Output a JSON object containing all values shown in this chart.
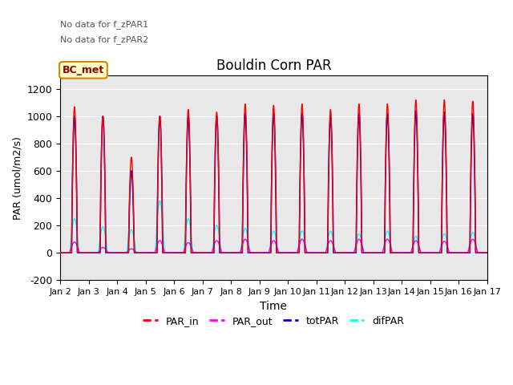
{
  "title": "Bouldin Corn PAR",
  "xlabel": "Time",
  "ylabel": "PAR (umol/m2/s)",
  "ylim": [
    -200,
    1300
  ],
  "yticks": [
    -200,
    0,
    200,
    400,
    600,
    800,
    1000,
    1200
  ],
  "n_days": 15,
  "colors": {
    "PAR_in": "#ff0000",
    "PAR_out": "#ff00ff",
    "totPAR": "#0000cc",
    "difPAR": "#00ffff"
  },
  "legend_labels": [
    "PAR_in",
    "PAR_out",
    "totPAR",
    "difPAR"
  ],
  "no_data_text1": "No data for f_zPAR1",
  "no_data_text2": "No data for f_zPAR2",
  "bc_met_label": "BC_met",
  "xtick_labels": [
    "Jan 2",
    "Jan 3",
    "Jan 4",
    "Jan 5",
    "Jan 6",
    "Jan 7",
    "Jan 8",
    "Jan 9",
    "Jan 10",
    "Jan 11",
    "Jan 12",
    "Jan 13",
    "Jan 14",
    "Jan 15",
    "Jan 16",
    "Jan 17"
  ],
  "background_color": "#ffffff",
  "plot_bg_color": "#e8e8e8",
  "day_peaks_par_in": [
    1070,
    1000,
    700,
    1000,
    1050,
    1030,
    1090,
    1080,
    1090,
    1050,
    1090,
    1090,
    1120,
    1120,
    1110
  ],
  "day_peaks_tot": [
    1000,
    1000,
    600,
    1000,
    1000,
    1000,
    1020,
    1020,
    1020,
    1000,
    1020,
    1020,
    1040,
    1030,
    1020
  ],
  "day_peaks_dif": [
    250,
    190,
    170,
    380,
    250,
    200,
    180,
    160,
    160,
    160,
    140,
    160,
    120,
    140,
    150
  ],
  "day_peaks_par_out": [
    80,
    40,
    30,
    90,
    75,
    90,
    100,
    90,
    100,
    90,
    100,
    100,
    90,
    85,
    100
  ]
}
